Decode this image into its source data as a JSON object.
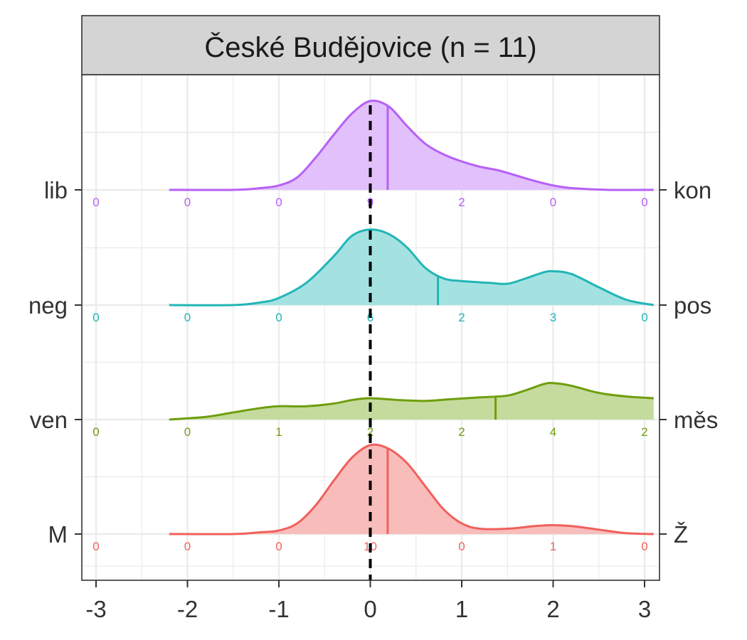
{
  "chart_data": {
    "type": "ridgeline",
    "title": "České Budějovice (n = 11)",
    "xlim": [
      -3.15,
      3.15
    ],
    "x_ticks": [
      -3,
      -2,
      -1,
      0,
      1,
      2,
      3
    ],
    "x_tick_labels": [
      "-3",
      "-2",
      "-1",
      "0",
      "1",
      "2",
      "3"
    ],
    "reference_line_x": 0,
    "count_x": [
      -3,
      -2,
      -1,
      0,
      1,
      2,
      3
    ],
    "grid": true,
    "series": [
      {
        "left_label": "M",
        "right_label": "Ž",
        "color": "#F0605C",
        "fill": "#F8BDBB",
        "mean": 0.19,
        "counts": [
          "0",
          "0",
          "0",
          "10",
          "0",
          "1",
          "0"
        ],
        "density": [
          [
            -2.2,
            0.0
          ],
          [
            -1.5,
            0.0
          ],
          [
            -1.2,
            0.02
          ],
          [
            -1.0,
            0.04
          ],
          [
            -0.8,
            0.12
          ],
          [
            -0.6,
            0.32
          ],
          [
            -0.4,
            0.6
          ],
          [
            -0.2,
            0.86
          ],
          [
            0.0,
            1.0
          ],
          [
            0.2,
            0.96
          ],
          [
            0.4,
            0.8
          ],
          [
            0.6,
            0.54
          ],
          [
            0.8,
            0.28
          ],
          [
            1.0,
            0.12
          ],
          [
            1.2,
            0.06
          ],
          [
            1.5,
            0.06
          ],
          [
            1.8,
            0.09
          ],
          [
            2.0,
            0.1
          ],
          [
            2.2,
            0.09
          ],
          [
            2.5,
            0.05
          ],
          [
            2.8,
            0.01
          ],
          [
            3.1,
            0.0
          ]
        ]
      },
      {
        "left_label": "ven",
        "right_label": "měs",
        "color": "#6E9E0C",
        "fill": "#C5DB9D",
        "mean": 1.37,
        "counts": [
          "0",
          "0",
          "1",
          "2",
          "2",
          "4",
          "2"
        ],
        "density": [
          [
            -2.2,
            0.0
          ],
          [
            -1.8,
            0.03
          ],
          [
            -1.5,
            0.08
          ],
          [
            -1.2,
            0.13
          ],
          [
            -1.0,
            0.15
          ],
          [
            -0.7,
            0.15
          ],
          [
            -0.4,
            0.18
          ],
          [
            -0.2,
            0.22
          ],
          [
            0.0,
            0.24
          ],
          [
            0.3,
            0.22
          ],
          [
            0.6,
            0.21
          ],
          [
            0.9,
            0.23
          ],
          [
            1.2,
            0.25
          ],
          [
            1.5,
            0.27
          ],
          [
            1.7,
            0.33
          ],
          [
            1.9,
            0.4
          ],
          [
            2.0,
            0.41
          ],
          [
            2.2,
            0.38
          ],
          [
            2.5,
            0.3
          ],
          [
            2.8,
            0.26
          ],
          [
            3.1,
            0.24
          ]
        ]
      },
      {
        "left_label": "neg",
        "right_label": "pos",
        "color": "#22B5B6",
        "fill": "#A4E2E2",
        "mean": 0.74,
        "counts": [
          "0",
          "0",
          "0",
          "6",
          "2",
          "3",
          "0"
        ],
        "density": [
          [
            -2.2,
            0.0
          ],
          [
            -1.5,
            0.0
          ],
          [
            -1.2,
            0.03
          ],
          [
            -1.0,
            0.08
          ],
          [
            -0.7,
            0.25
          ],
          [
            -0.4,
            0.55
          ],
          [
            -0.2,
            0.78
          ],
          [
            0.0,
            0.85
          ],
          [
            0.2,
            0.8
          ],
          [
            0.4,
            0.65
          ],
          [
            0.6,
            0.42
          ],
          [
            0.8,
            0.3
          ],
          [
            1.0,
            0.27
          ],
          [
            1.3,
            0.25
          ],
          [
            1.5,
            0.24
          ],
          [
            1.7,
            0.3
          ],
          [
            1.9,
            0.37
          ],
          [
            2.0,
            0.38
          ],
          [
            2.2,
            0.35
          ],
          [
            2.5,
            0.2
          ],
          [
            2.8,
            0.06
          ],
          [
            3.1,
            0.0
          ]
        ]
      },
      {
        "left_label": "lib",
        "right_label": "kon",
        "color": "#B660F5",
        "fill": "#E2C0FB",
        "mean": 0.19,
        "counts": [
          "0",
          "0",
          "0",
          "9",
          "2",
          "0",
          "0"
        ],
        "density": [
          [
            -2.2,
            0.0
          ],
          [
            -1.5,
            0.0
          ],
          [
            -1.2,
            0.02
          ],
          [
            -1.0,
            0.05
          ],
          [
            -0.8,
            0.14
          ],
          [
            -0.6,
            0.36
          ],
          [
            -0.4,
            0.62
          ],
          [
            -0.2,
            0.86
          ],
          [
            0.0,
            1.0
          ],
          [
            0.2,
            0.94
          ],
          [
            0.4,
            0.72
          ],
          [
            0.6,
            0.52
          ],
          [
            0.8,
            0.4
          ],
          [
            1.0,
            0.32
          ],
          [
            1.2,
            0.26
          ],
          [
            1.4,
            0.22
          ],
          [
            1.6,
            0.16
          ],
          [
            1.8,
            0.1
          ],
          [
            2.0,
            0.05
          ],
          [
            2.2,
            0.02
          ],
          [
            2.6,
            0.0
          ],
          [
            3.1,
            0.0
          ]
        ]
      }
    ]
  }
}
